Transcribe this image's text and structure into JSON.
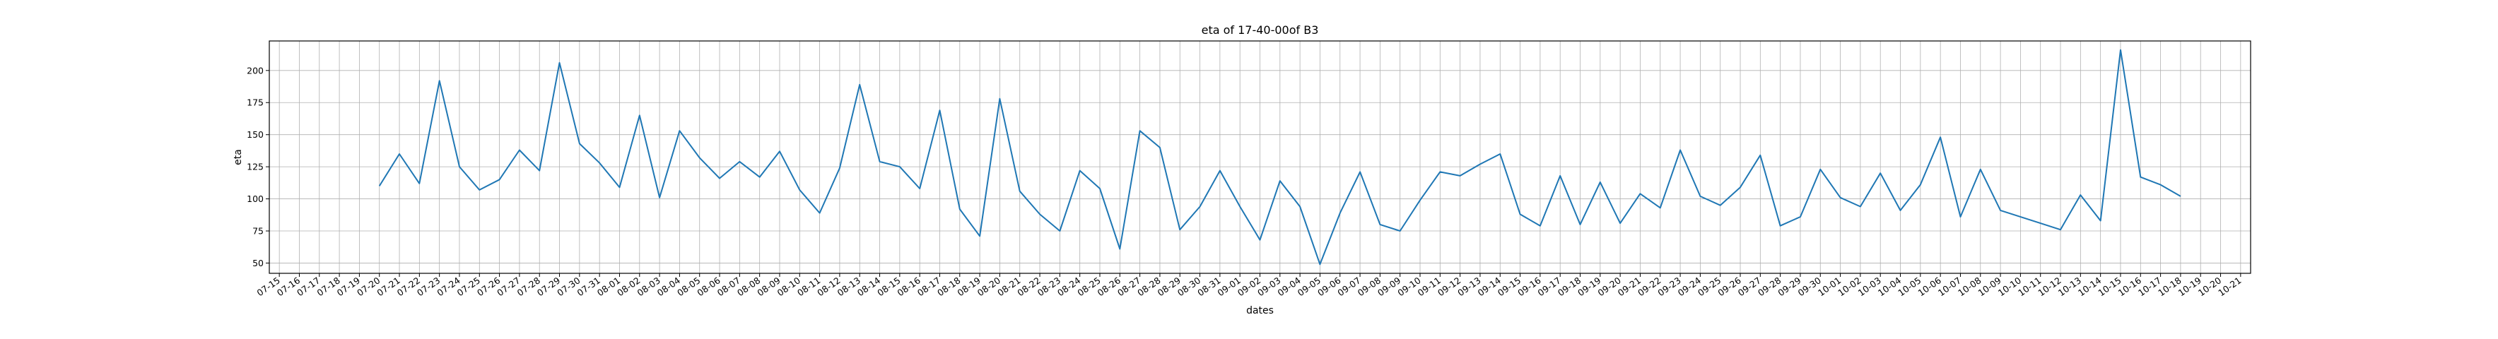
{
  "chart_data": {
    "type": "line",
    "title": "eta of 17-40-00of B3",
    "xlabel": "dates",
    "ylabel": "eta",
    "grid": true,
    "color": "#1f77b4",
    "x_ticks": [
      "07-15",
      "07-16",
      "07-17",
      "07-18",
      "07-19",
      "07-20",
      "07-21",
      "07-22",
      "07-23",
      "07-24",
      "07-25",
      "07-26",
      "07-27",
      "07-28",
      "07-29",
      "07-30",
      "07-31",
      "08-01",
      "08-02",
      "08-03",
      "08-04",
      "08-05",
      "08-06",
      "08-07",
      "08-08",
      "08-09",
      "08-10",
      "08-11",
      "08-12",
      "08-13",
      "08-14",
      "08-15",
      "08-16",
      "08-17",
      "08-18",
      "08-19",
      "08-20",
      "08-21",
      "08-22",
      "08-23",
      "08-24",
      "08-25",
      "08-26",
      "08-27",
      "08-28",
      "08-29",
      "08-30",
      "08-31",
      "09-01",
      "09-02",
      "09-03",
      "09-04",
      "09-05",
      "09-06",
      "09-07",
      "09-08",
      "09-09",
      "09-10",
      "09-11",
      "09-12",
      "09-13",
      "09-14",
      "09-15",
      "09-16",
      "09-17",
      "09-18",
      "09-19",
      "09-20",
      "09-21",
      "09-22",
      "09-23",
      "09-24",
      "09-25",
      "09-26",
      "09-27",
      "09-28",
      "09-29",
      "09-30",
      "10-01",
      "10-02",
      "10-03",
      "10-04",
      "10-05",
      "10-06",
      "10-07",
      "10-08",
      "10-09",
      "10-10",
      "10-11",
      "10-12",
      "10-13",
      "10-14",
      "10-15",
      "10-16",
      "10-17",
      "10-18",
      "10-19",
      "10-20",
      "10-21"
    ],
    "y_ticks": [
      50,
      75,
      100,
      125,
      150,
      175,
      200
    ],
    "ylim": [
      42,
      223
    ],
    "series": [
      {
        "points": [
          [
            "07-20",
            110
          ],
          [
            "07-21",
            135
          ],
          [
            "07-22",
            112
          ],
          [
            "07-23",
            192
          ],
          [
            "07-24",
            125
          ],
          [
            "07-25",
            107
          ],
          [
            "07-26",
            115
          ],
          [
            "07-27",
            138
          ],
          [
            "07-28",
            122
          ],
          [
            "07-29",
            206
          ],
          [
            "07-30",
            143
          ],
          [
            "07-31",
            128
          ],
          [
            "08-01",
            109
          ],
          [
            "08-02",
            165
          ],
          [
            "08-03",
            101
          ],
          [
            "08-04",
            153
          ],
          [
            "08-05",
            132
          ],
          [
            "08-06",
            116
          ],
          [
            "08-07",
            129
          ],
          [
            "08-08",
            117
          ],
          [
            "08-09",
            137
          ],
          [
            "08-10",
            107
          ],
          [
            "08-11",
            89
          ],
          [
            "08-12",
            124
          ],
          [
            "08-13",
            189
          ],
          [
            "08-14",
            129
          ],
          [
            "08-15",
            125
          ],
          [
            "08-16",
            108
          ],
          [
            "08-17",
            169
          ],
          [
            "08-18",
            92
          ],
          [
            "08-19",
            71
          ],
          [
            "08-20",
            178
          ],
          [
            "08-21",
            106
          ],
          [
            "08-22",
            88
          ],
          [
            "08-23",
            75
          ],
          [
            "08-24",
            122
          ],
          [
            "08-25",
            108
          ],
          [
            "08-26",
            61
          ],
          [
            "08-27",
            153
          ],
          [
            "08-28",
            140
          ],
          [
            "08-29",
            76
          ],
          [
            "08-30",
            94
          ],
          [
            "08-31",
            122
          ],
          [
            "09-01",
            94
          ],
          [
            "09-02",
            68
          ],
          [
            "09-03",
            114
          ],
          [
            "09-04",
            94
          ],
          [
            "09-05",
            49
          ],
          [
            "09-06",
            89
          ],
          [
            "09-07",
            121
          ],
          [
            "09-08",
            80
          ],
          [
            "09-09",
            75
          ],
          [
            "09-10",
            99
          ],
          [
            "09-11",
            121
          ],
          [
            "09-12",
            118
          ],
          [
            "09-13",
            127
          ],
          [
            "09-14",
            135
          ],
          [
            "09-15",
            88
          ],
          [
            "09-16",
            79
          ],
          [
            "09-17",
            118
          ],
          [
            "09-18",
            80
          ],
          [
            "09-19",
            113
          ],
          [
            "09-20",
            81
          ],
          [
            "09-21",
            104
          ],
          [
            "09-22",
            93
          ],
          [
            "09-23",
            138
          ],
          [
            "09-24",
            102
          ],
          [
            "09-25",
            95
          ],
          [
            "09-26",
            109
          ],
          [
            "09-27",
            134
          ],
          [
            "09-28",
            79
          ],
          [
            "09-29",
            86
          ],
          [
            "09-30",
            123
          ],
          [
            "10-01",
            101
          ],
          [
            "10-02",
            94
          ],
          [
            "10-03",
            120
          ],
          [
            "10-04",
            91
          ],
          [
            "10-05",
            111
          ],
          [
            "10-06",
            148
          ],
          [
            "10-07",
            86
          ],
          [
            "10-08",
            123
          ],
          [
            "10-09",
            91
          ],
          [
            "10-11",
            81
          ],
          [
            "10-12",
            76
          ],
          [
            "10-13",
            103
          ],
          [
            "10-14",
            83
          ],
          [
            "10-15",
            216
          ],
          [
            "10-16",
            117
          ],
          [
            "10-17",
            111
          ],
          [
            "10-18",
            102
          ]
        ]
      }
    ]
  }
}
